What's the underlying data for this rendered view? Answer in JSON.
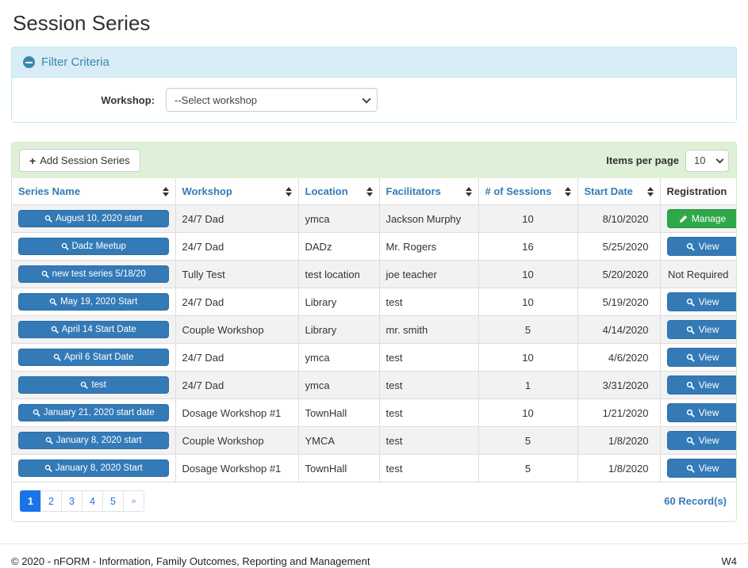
{
  "page": {
    "title": "Session Series"
  },
  "filter": {
    "title": "Filter Criteria",
    "workshop_label": "Workshop:",
    "workshop_selected": "--Select workshop"
  },
  "toolbar": {
    "add_button_label": "Add Session Series",
    "items_per_page_label": "Items per page",
    "items_per_page_value": "10"
  },
  "table": {
    "columns": [
      {
        "label": "Series Name",
        "sortable": true
      },
      {
        "label": "Workshop",
        "sortable": true
      },
      {
        "label": "Location",
        "sortable": true
      },
      {
        "label": "Facilitators",
        "sortable": true
      },
      {
        "label": "# of Sessions",
        "sortable": true
      },
      {
        "label": "Start Date",
        "sortable": true
      },
      {
        "label": "Registration",
        "sortable": false
      }
    ],
    "rows": [
      {
        "series_name": "August 10, 2020 start",
        "workshop": "24/7 Dad",
        "location": "ymca",
        "facilitators": "Jackson Murphy",
        "sessions": "10",
        "start_date": "8/10/2020",
        "registration": {
          "type": "manage",
          "label": "Manage"
        }
      },
      {
        "series_name": "Dadz Meetup",
        "workshop": "24/7 Dad",
        "location": "DADz",
        "facilitators": "Mr. Rogers",
        "sessions": "16",
        "start_date": "5/25/2020",
        "registration": {
          "type": "view",
          "label": "View"
        }
      },
      {
        "series_name": "new test series 5/18/20",
        "workshop": "Tully Test",
        "location": "test location",
        "facilitators": "joe teacher",
        "sessions": "10",
        "start_date": "5/20/2020",
        "registration": {
          "type": "text",
          "label": "Not Required"
        }
      },
      {
        "series_name": "May 19, 2020 Start",
        "workshop": "24/7 Dad",
        "location": "Library",
        "facilitators": "test",
        "sessions": "10",
        "start_date": "5/19/2020",
        "registration": {
          "type": "view",
          "label": "View"
        }
      },
      {
        "series_name": "April 14 Start Date",
        "workshop": "Couple Workshop",
        "location": "Library",
        "facilitators": "mr. smith",
        "sessions": "5",
        "start_date": "4/14/2020",
        "registration": {
          "type": "view",
          "label": "View"
        }
      },
      {
        "series_name": "April 6 Start Date",
        "workshop": "24/7 Dad",
        "location": "ymca",
        "facilitators": "test",
        "sessions": "10",
        "start_date": "4/6/2020",
        "registration": {
          "type": "view",
          "label": "View"
        }
      },
      {
        "series_name": "test",
        "workshop": "24/7 Dad",
        "location": "ymca",
        "facilitators": "test",
        "sessions": "1",
        "start_date": "3/31/2020",
        "registration": {
          "type": "view",
          "label": "View"
        }
      },
      {
        "series_name": "January 21, 2020 start date",
        "workshop": "Dosage Workshop #1",
        "location": "TownHall",
        "facilitators": "test",
        "sessions": "10",
        "start_date": "1/21/2020",
        "registration": {
          "type": "view",
          "label": "View"
        }
      },
      {
        "series_name": "January 8, 2020 start",
        "workshop": "Couple Workshop",
        "location": "YMCA",
        "facilitators": "test",
        "sessions": "5",
        "start_date": "1/8/2020",
        "registration": {
          "type": "view",
          "label": "View"
        }
      },
      {
        "series_name": "January 8, 2020 Start",
        "workshop": "Dosage Workshop #1",
        "location": "TownHall",
        "facilitators": "test",
        "sessions": "5",
        "start_date": "1/8/2020",
        "registration": {
          "type": "view",
          "label": "View"
        }
      }
    ]
  },
  "pagination": {
    "pages": [
      "1",
      "2",
      "3",
      "4",
      "5"
    ],
    "active_page": "1",
    "next_label": "»",
    "record_count": "60 Record(s)"
  },
  "footer": {
    "copyright": "© 2020 - nFORM - Information, Family Outcomes, Reporting and Management",
    "environment": "W4"
  },
  "colors": {
    "primary_button": "#337ab7",
    "success_button": "#2fa84a",
    "filter_header_bg": "#d9edf7",
    "filter_border": "#bce8f1",
    "toolbar_bg": "#dff0d8",
    "panel_border": "#d6e9c6",
    "pagination_active": "#1a73e8",
    "header_link": "#337ab7"
  }
}
